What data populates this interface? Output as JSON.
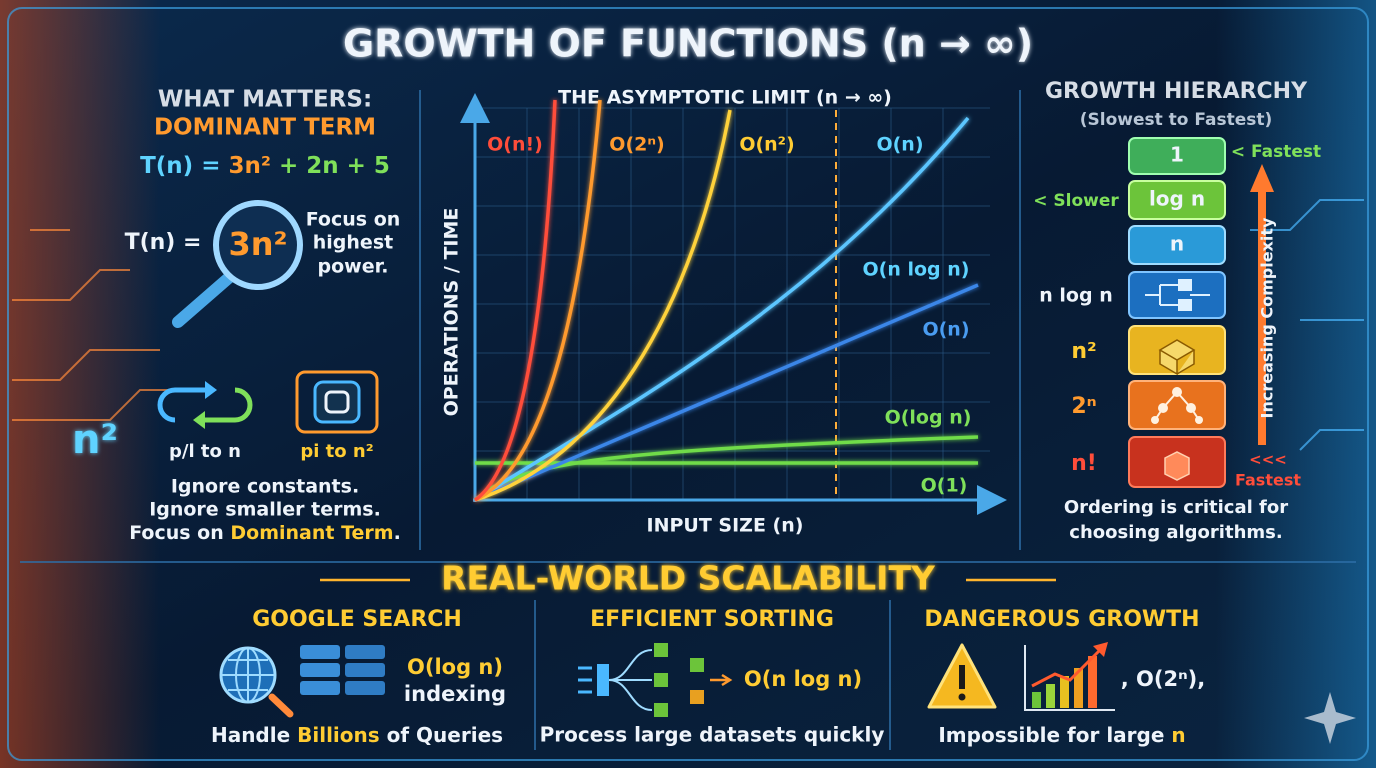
{
  "title": "GROWTH OF FUNCTIONS (n → ∞)",
  "left": {
    "heading": "WHAT MATTERS:",
    "subheading": "DOMINANT TERM",
    "formula": [
      "T(n) = ",
      "3n²",
      " + 2n + 5"
    ],
    "lens_prefix": "T(n) =",
    "lens_term": "3n²",
    "lens_note": [
      "Focus on",
      "highest",
      "power."
    ],
    "big_term": "n²",
    "icon_labels": [
      "p/l to n",
      "pi to n²"
    ],
    "notes": [
      "Ignore constants.",
      "Ignore smaller terms."
    ],
    "focus": [
      "Focus on ",
      "Dominant Term",
      "."
    ]
  },
  "plot": {
    "title": "THE ASYMPTOTIC LIMIT (n → ∞)",
    "y_label": "OPERATIONS / TIME",
    "x_label": "INPUT SIZE (n)",
    "curve_labels": [
      "O(n!)",
      "O(2ⁿ)",
      "O(n²)",
      "O(n)",
      "O(n log n)",
      "O(n)",
      "O(log n)",
      "O(1)"
    ]
  },
  "hierarchy": {
    "title": "GROWTH HIERARCHY",
    "subtitle": "(Slowest to Fastest)",
    "top_marker": "< Fastest",
    "slower_marker": "< Slower",
    "box_labels": [
      "1",
      "log n",
      "n"
    ],
    "side_labels": [
      "n log n",
      "n²",
      "2ⁿ",
      "n!"
    ],
    "axis_label": "Increasing Complexity",
    "bottom_marker": [
      "<<<",
      "Fastest"
    ],
    "note": [
      "Ordering is critical for",
      "choosing algorithms."
    ]
  },
  "scalability": {
    "title": "REAL-WORLD SCALABILITY",
    "google": {
      "title": "GOOGLE SEARCH",
      "complexity": "O(log n)",
      "detail": "indexing",
      "caption": [
        "Handle ",
        "Billions",
        " of Queries"
      ]
    },
    "sorting": {
      "title": "EFFICIENT SORTING",
      "complexity": "O(n log n)",
      "caption": "Process large datasets quickly"
    },
    "danger": {
      "title": "DANGEROUS GROWTH",
      "complexity": ", O(2ⁿ),",
      "caption": [
        "Impossible for large ",
        "n"
      ]
    }
  }
}
